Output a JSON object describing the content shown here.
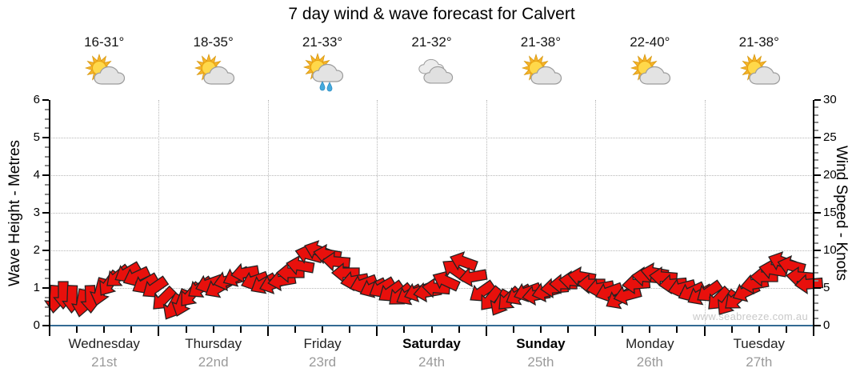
{
  "title": "7 day wind & wave forecast for Calvert",
  "watermark": "www.seabreeze.com.au",
  "colors": {
    "arrow": "#e8100c",
    "arrow_outline": "#222222",
    "grid": "#b8b8b8",
    "axis": "#000000",
    "wave_line": "#336a93",
    "day_name": "#222222",
    "day_date": "#9a9a9a",
    "watermark": "#c9c9c9",
    "sun": "#f4b229",
    "sun_core": "#ffd84a",
    "cloud": "#e3e3e3",
    "cloud_outline": "#9b9b9b",
    "rain": "#44aadd"
  },
  "chart_data": {
    "type": "scatter",
    "title": "7 day wind & wave forecast for Calvert",
    "y_left": {
      "label": "Wave Height - Metres",
      "min": 0,
      "max": 6,
      "major_step": 1,
      "minor_step": 0.25,
      "unit": "m",
      "tick_labels": [
        "0",
        "1",
        "2",
        "3",
        "4",
        "5",
        "6"
      ]
    },
    "y_right": {
      "label": "Wind Speed - Knots",
      "min": 0,
      "max": 30,
      "major_step": 5,
      "minor_step": 1,
      "unit": "knots",
      "tick_labels": [
        "0",
        "5",
        "10",
        "15",
        "20",
        "25",
        "30"
      ]
    },
    "x": {
      "days": 7,
      "intervals_per_day": 4,
      "grid": "dotted-at-day-boundaries"
    },
    "days": [
      {
        "name": "Wednesday",
        "date": "21st",
        "temp_range": "16-31°",
        "icon": "sun-cloud",
        "weekend": false
      },
      {
        "name": "Thursday",
        "date": "22nd",
        "temp_range": "18-35°",
        "icon": "sun-cloud",
        "weekend": false
      },
      {
        "name": "Friday",
        "date": "23rd",
        "temp_range": "21-33°",
        "icon": "sun-cloud-rain",
        "weekend": false
      },
      {
        "name": "Saturday",
        "date": "24th",
        "temp_range": "21-32°",
        "icon": "clouds",
        "weekend": true
      },
      {
        "name": "Sunday",
        "date": "25th",
        "temp_range": "21-38°",
        "icon": "sun-cloud",
        "weekend": true
      },
      {
        "name": "Monday",
        "date": "26th",
        "temp_range": "22-40°",
        "icon": "sun-cloud",
        "weekend": false
      },
      {
        "name": "Tuesday",
        "date": "27th",
        "temp_range": "21-38°",
        "icon": "sun-cloud",
        "weekend": false
      }
    ],
    "wind": {
      "series": "Wind Speed",
      "axis": "right",
      "samples_per_day": 12,
      "per_day_speed_knots": [
        [
          3.5,
          4,
          3.5,
          3,
          3.5,
          4.5,
          5.5,
          6.5,
          7,
          6.5,
          5.5,
          5
        ],
        [
          3.5,
          2.5,
          3,
          4,
          5,
          5.5,
          5,
          6,
          6.5,
          7,
          6,
          5.5
        ],
        [
          5.5,
          6,
          7,
          8,
          9.5,
          10,
          9.5,
          8.5,
          7,
          6,
          5.5,
          5
        ],
        [
          5,
          4.5,
          4,
          4,
          4.5,
          4.5,
          5,
          6,
          7.5,
          8.5,
          6.5,
          4.5
        ],
        [
          3.5,
          3,
          3.5,
          4,
          4.5,
          4,
          4.5,
          5,
          5.5,
          6,
          6.5,
          5.5
        ],
        [
          5,
          4.5,
          3.5,
          4,
          5.5,
          6.5,
          7,
          6.5,
          5.5,
          5,
          4.5,
          4
        ],
        [
          4.5,
          3.5,
          3,
          3.5,
          4.5,
          5.5,
          6.5,
          7.5,
          8.5,
          8,
          6.5,
          5.5
        ]
      ],
      "per_day_direction_deg_cw_from_east": [
        [
          95,
          90,
          92,
          100,
          88,
          105,
          125,
          140,
          150,
          155,
          150,
          145
        ],
        [
          135,
          120,
          110,
          130,
          145,
          160,
          150,
          165,
          155,
          170,
          160,
          150
        ],
        [
          160,
          170,
          180,
          190,
          195,
          200,
          190,
          185,
          180,
          170,
          160,
          155
        ],
        [
          150,
          145,
          140,
          150,
          160,
          170,
          185,
          205,
          215,
          200,
          170,
          145
        ],
        [
          130,
          120,
          135,
          150,
          160,
          170,
          165,
          175,
          180,
          185,
          190,
          180
        ],
        [
          170,
          160,
          150,
          165,
          175,
          185,
          190,
          185,
          175,
          165,
          155,
          150
        ],
        [
          145,
          135,
          125,
          140,
          155,
          170,
          180,
          190,
          200,
          195,
          185,
          175
        ]
      ]
    },
    "wave": {
      "series": "Wave Height",
      "axis": "left",
      "height_m": 0,
      "shape": "flat line at 0 metres across all 7 days"
    }
  }
}
